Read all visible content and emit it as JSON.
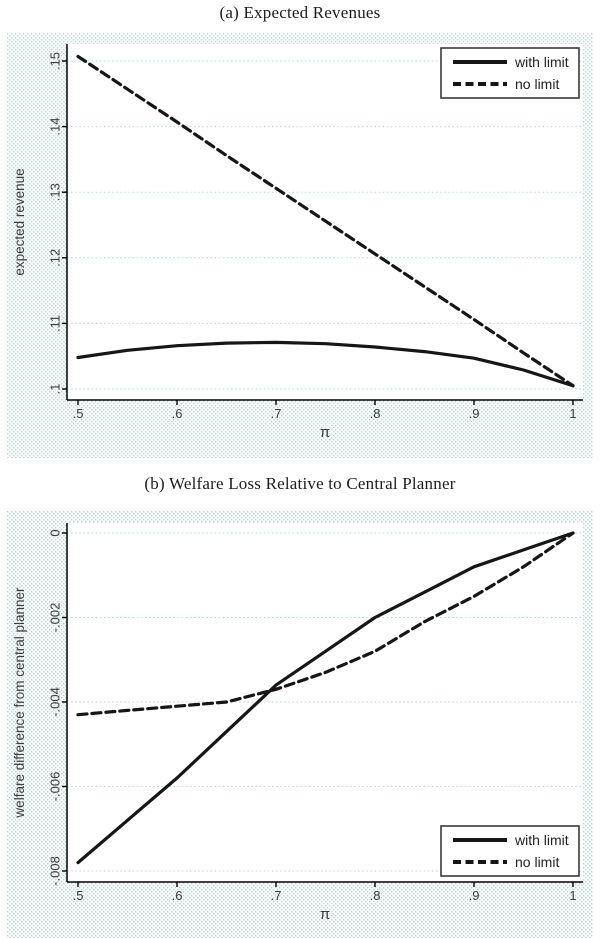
{
  "figure_titles": {
    "panel_a": "(a) Expected Revenues",
    "panel_b": "(b) Welfare Loss Relative to Central Planner"
  },
  "colors": {
    "line": "#161616",
    "gridline": "#a9dbe0",
    "region_dot": "#b7d2d9",
    "region_base": "#fbfdfd",
    "plot_bg": "#ffffff",
    "axis": "#000000",
    "tick_text": "#3c3c3c",
    "legend_border": "#3a3a3a"
  },
  "chart_data": [
    {
      "type": "line",
      "title": "(a) Expected Revenues",
      "xlabel": "π",
      "ylabel": "expected revenue",
      "x": [
        0.5,
        0.55,
        0.6,
        0.65,
        0.7,
        0.75,
        0.8,
        0.85,
        0.9,
        0.95,
        1.0
      ],
      "series": [
        {
          "name": "with limit",
          "style": "solid",
          "values": [
            0.1048,
            0.1059,
            0.1066,
            0.107,
            0.1071,
            0.1069,
            0.1064,
            0.1057,
            0.1047,
            0.1029,
            0.1005
          ]
        },
        {
          "name": "no limit",
          "style": "dashed",
          "values": [
            0.1507,
            0.1457,
            0.1407,
            0.1356,
            0.1306,
            0.1256,
            0.1206,
            0.1156,
            0.1106,
            0.1055,
            0.1005
          ]
        }
      ],
      "xticks": {
        "values": [
          0.5,
          0.6,
          0.7,
          0.8,
          0.9,
          1.0
        ],
        "labels": [
          ".5",
          ".6",
          ".7",
          ".8",
          ".9",
          "1"
        ]
      },
      "yticks": {
        "values": [
          0.1,
          0.11,
          0.12,
          0.13,
          0.14,
          0.15
        ],
        "labels": [
          ".1",
          ".11",
          ".12",
          ".13",
          ".14",
          ".15"
        ]
      },
      "xlim": [
        0.489,
        1.01
      ],
      "ylim": [
        0.0985,
        0.1526
      ],
      "grid": "horizontal-dotted",
      "legend_position": "top-right",
      "legend_items": [
        "with limit",
        "no limit"
      ]
    },
    {
      "type": "line",
      "title": "(b) Welfare Loss Relative to Central Planner",
      "xlabel": "π",
      "ylabel": "welfare difference from central planner",
      "x": [
        0.5,
        0.55,
        0.6,
        0.65,
        0.7,
        0.75,
        0.8,
        0.85,
        0.9,
        0.95,
        1.0
      ],
      "series": [
        {
          "name": "with limit",
          "style": "solid",
          "values": [
            -0.0078,
            -0.0068,
            -0.0058,
            -0.0047,
            -0.0036,
            -0.0028,
            -0.002,
            -0.0014,
            -0.0008,
            -0.0004,
            0.0
          ]
        },
        {
          "name": "no limit",
          "style": "dashed",
          "values": [
            -0.0043,
            -0.0042,
            -0.0041,
            -0.004,
            -0.0037,
            -0.0033,
            -0.0028,
            -0.0021,
            -0.0015,
            -0.0008,
            0.0
          ]
        }
      ],
      "xticks": {
        "values": [
          0.5,
          0.6,
          0.7,
          0.8,
          0.9,
          1.0
        ],
        "labels": [
          ".5",
          ".6",
          ".7",
          ".8",
          ".9",
          "1"
        ]
      },
      "yticks": {
        "values": [
          0.0,
          -0.002,
          -0.004,
          -0.006,
          -0.008
        ],
        "labels": [
          "0",
          "-.002",
          "-.004",
          "-.006",
          "-.008"
        ]
      },
      "xlim": [
        0.489,
        1.01
      ],
      "ylim": [
        -0.00826,
        0.00024
      ],
      "grid": "horizontal-dotted",
      "legend_position": "bottom-right",
      "legend_items": [
        "with limit",
        "no limit"
      ]
    }
  ]
}
